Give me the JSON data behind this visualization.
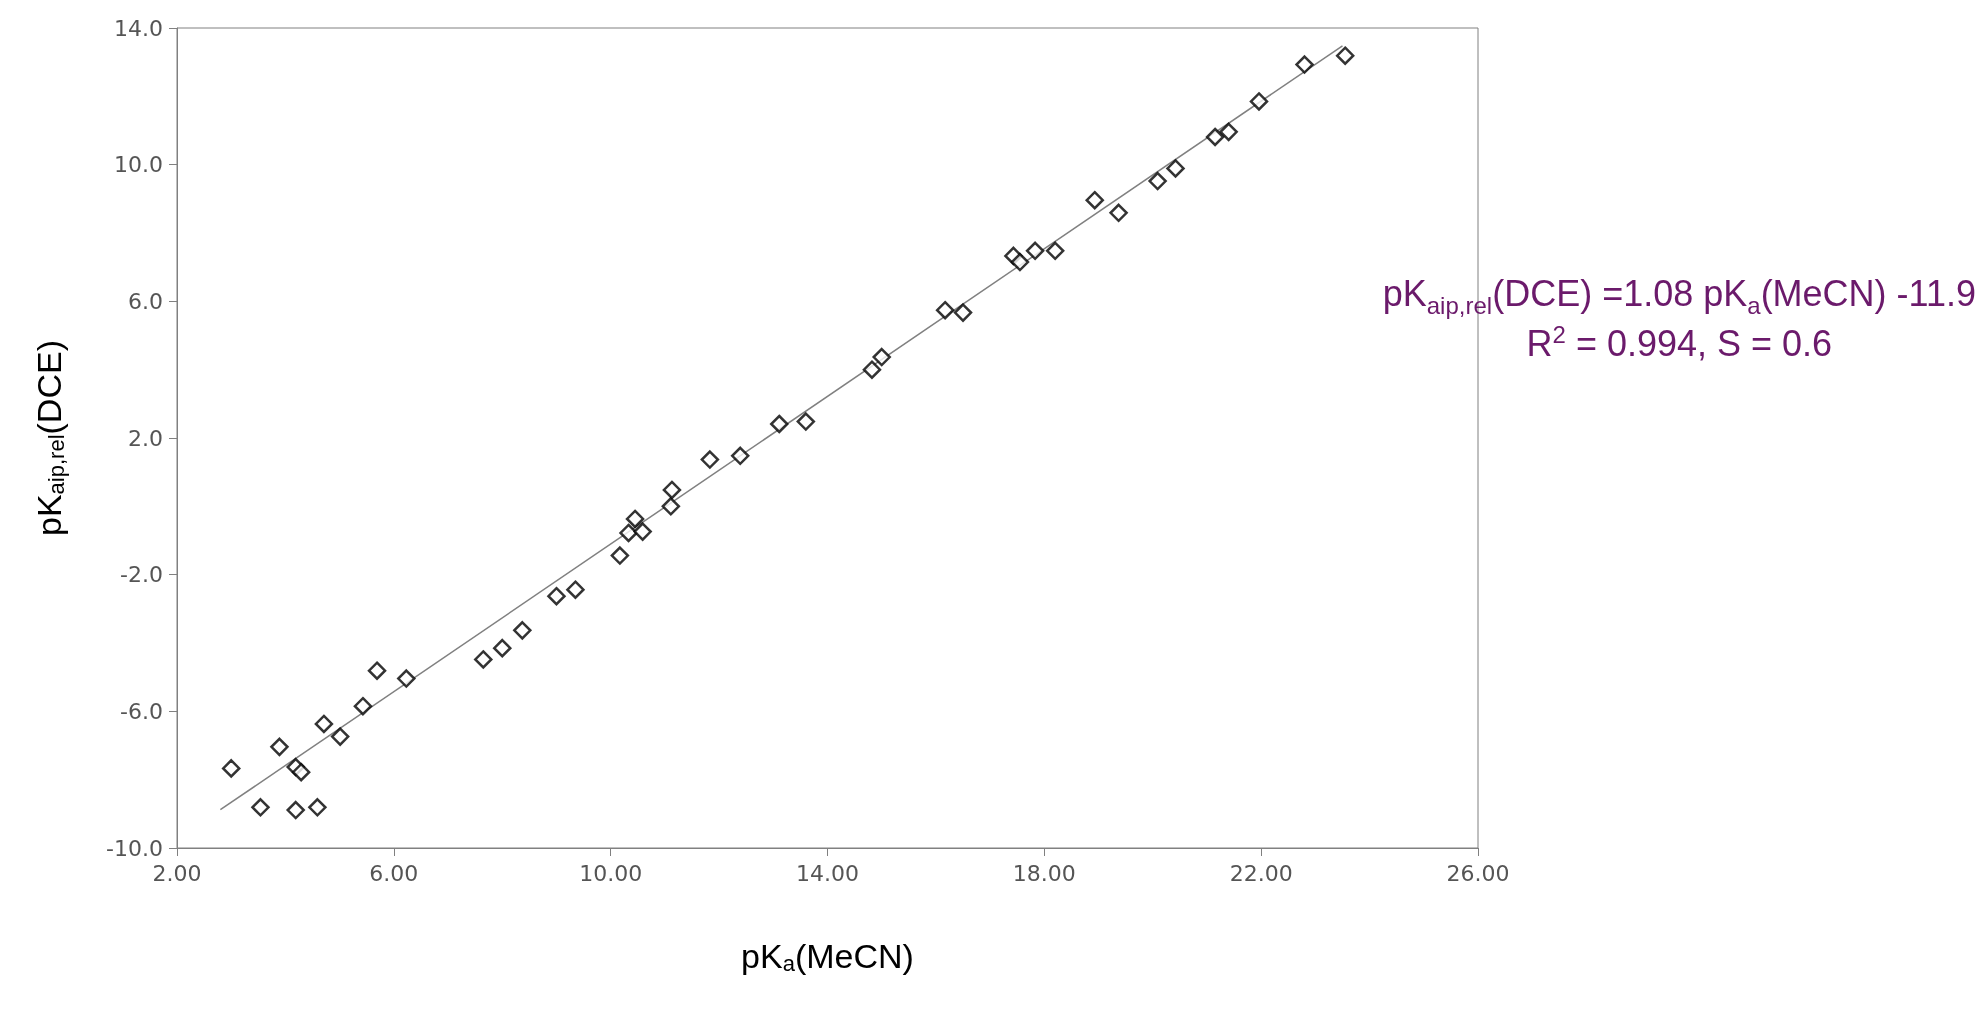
{
  "chart_data": {
    "type": "scatter",
    "xlabel": "pK$_{a}$(MeCN)",
    "ylabel": "pK$_{aip,rel}$(DCE)",
    "annotations": [
      "pK$_{aip,rel}$(DCE) =1.08 pK$_{a}$(MeCN) -11.9",
      "R$^{2}$ = 0.994,  S = 0.6"
    ],
    "xlim": [
      2,
      26
    ],
    "xticks": [
      {
        "value": 2,
        "label": "2.00"
      },
      {
        "value": 6,
        "label": "6.00"
      },
      {
        "value": 10,
        "label": "10.00"
      },
      {
        "value": 14,
        "label": "14.00"
      },
      {
        "value": 18,
        "label": "18.00"
      },
      {
        "value": 22,
        "label": "22.00"
      },
      {
        "value": 26,
        "label": "26.00"
      }
    ],
    "ylim": [
      -10,
      14
    ],
    "yticks": [
      {
        "value": -10,
        "label": "-10.0"
      },
      {
        "value": -6,
        "label": "-6.0"
      },
      {
        "value": -2,
        "label": "-2.0"
      },
      {
        "value": 2,
        "label": "2.0"
      },
      {
        "value": 6,
        "label": "6.0"
      },
      {
        "value": 10,
        "label": "10.0"
      },
      {
        "value": 14,
        "label": "14.0"
      }
    ],
    "grid": false,
    "series": [
      {
        "color": "#000000",
        "marker": "diamond",
        "x": [
          3.0,
          3.54,
          3.89,
          4.19,
          4.29,
          4.19,
          4.59,
          4.71,
          5.01,
          5.43,
          5.69,
          6.23,
          7.65,
          8.0,
          8.37,
          9.0,
          9.35,
          10.17,
          10.33,
          10.45,
          10.59,
          11.11,
          11.13,
          11.83,
          12.39,
          13.11,
          13.6,
          14.82,
          15.0,
          16.17,
          16.5,
          17.43,
          17.55,
          17.83,
          18.2,
          18.93,
          19.37,
          20.09,
          20.42,
          21.15,
          21.4,
          21.96,
          22.8,
          23.55
        ],
        "values": [
          -7.67,
          -8.81,
          -7.04,
          -7.63,
          -7.78,
          -8.89,
          -8.81,
          -6.37,
          -6.74,
          -5.85,
          -4.81,
          -5.04,
          -4.48,
          -4.15,
          -3.63,
          -2.63,
          -2.44,
          -1.44,
          -0.78,
          -0.37,
          -0.74,
          0.0,
          0.48,
          1.37,
          1.48,
          2.41,
          2.48,
          4.0,
          4.37,
          5.74,
          5.67,
          7.33,
          7.15,
          7.48,
          7.48,
          8.96,
          8.59,
          9.52,
          9.89,
          10.81,
          10.96,
          11.85,
          12.93,
          13.19
        ]
      },
      {
        "type": "line",
        "color": "#808080",
        "marker": "none",
        "line_style": "solid",
        "x": [
          2.8,
          23.5
        ],
        "values": [
          -8.88,
          13.48
        ]
      }
    ]
  }
}
